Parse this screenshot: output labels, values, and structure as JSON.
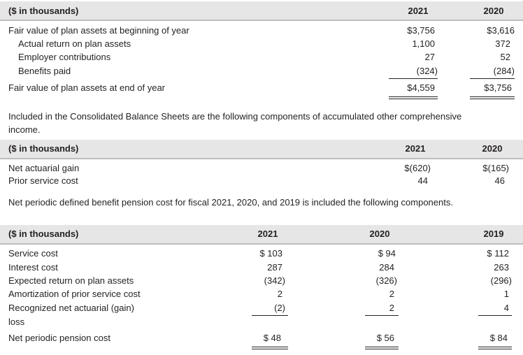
{
  "table1": {
    "unit": "($ in thousands)",
    "col_2021": "2021",
    "col_2020": "2020",
    "rows": [
      {
        "label": "Fair value of plan assets at beginning of year",
        "v2021": "$3,756",
        "v2020": "$3,616"
      },
      {
        "label": "Actual return on plan assets",
        "v2021": "1,100",
        "v2020": "372"
      },
      {
        "label": "Employer contributions",
        "v2021": "27",
        "v2020": "52"
      },
      {
        "label": "Benefits paid",
        "v2021": "(324)",
        "v2020": "(284)"
      },
      {
        "label": "Fair value of plan assets at end of year",
        "v2021": "$4,559",
        "v2020": "$3,756"
      }
    ]
  },
  "para1": "Included in the Consolidated Balance Sheets are the following components of accumulated other comprehensive income.",
  "table2": {
    "unit": "($ in thousands)",
    "col_2021": "2021",
    "col_2020": "2020",
    "rows": [
      {
        "label": "Net actuarial gain",
        "v2021": "$(620)",
        "v2020": "$(165)"
      },
      {
        "label": "Prior service cost",
        "v2021": "44",
        "v2020": "46"
      }
    ]
  },
  "para2": "Net periodic defined benefit pension cost for fiscal 2021, 2020, and 2019 is included the following components.",
  "table3": {
    "unit": "($ in thousands)",
    "col_2021": "2021",
    "col_2020": "2020",
    "col_2019": "2019",
    "rows": [
      {
        "label": "Service cost",
        "v2021": "$ 103",
        "v2020": "$  94",
        "v2019": "$ 112"
      },
      {
        "label": "Interest cost",
        "v2021": "287",
        "v2020": "284",
        "v2019": "263"
      },
      {
        "label": "Expected return on plan assets",
        "v2021": "(342)",
        "v2020": "(326)",
        "v2019": "(296)"
      },
      {
        "label": "Amortization of prior service cost",
        "v2021": "2",
        "v2020": "2",
        "v2019": "1"
      },
      {
        "label": "Recognized net actuarial (gain)",
        "v2021": "(2)",
        "v2020": "2",
        "v2019": "4"
      },
      {
        "label": "loss",
        "v2021": "",
        "v2020": "",
        "v2019": ""
      },
      {
        "label": "Net periodic pension cost",
        "v2021": "$  48",
        "v2020": "$  56",
        "v2019": "$  84"
      }
    ]
  }
}
